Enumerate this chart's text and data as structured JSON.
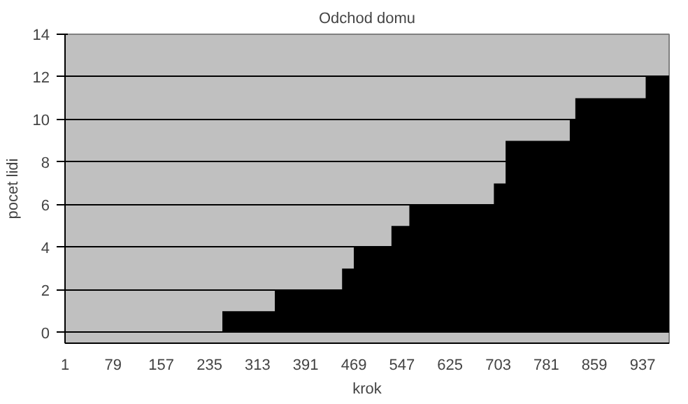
{
  "chart_data": {
    "type": "area",
    "title": "Odchod domu",
    "xlabel": "krok",
    "ylabel": "pocet lidi",
    "x": [
      1,
      256,
      256,
      341,
      341,
      450,
      450,
      469,
      469,
      530,
      530,
      559,
      559,
      696,
      696,
      715,
      715,
      819,
      819,
      828,
      828,
      942,
      942,
      980
    ],
    "series": [
      {
        "color": "#000000",
        "values": [
          0,
          0,
          1,
          1,
          2,
          2,
          3,
          3,
          4,
          4,
          5,
          5,
          6,
          6,
          7,
          7,
          9,
          9,
          10,
          10,
          11,
          11,
          12,
          12
        ]
      }
    ],
    "xlim": [
      1,
      980
    ],
    "xticks": [
      1,
      79,
      157,
      235,
      313,
      391,
      469,
      547,
      625,
      703,
      781,
      859,
      937
    ],
    "ylim": [
      -0.5,
      14
    ],
    "yticks": [
      0,
      2,
      4,
      6,
      8,
      10,
      12,
      14
    ],
    "grid": "y"
  }
}
